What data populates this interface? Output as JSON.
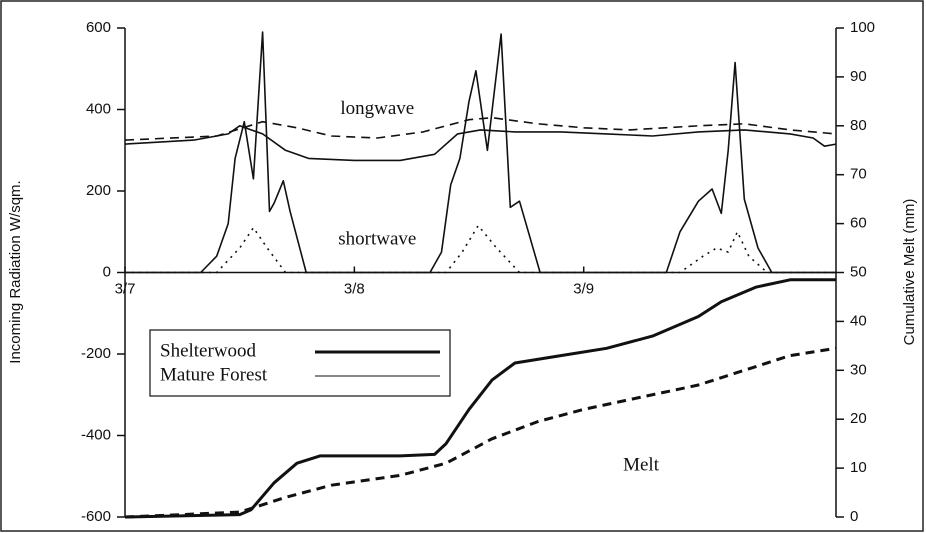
{
  "chart_data": {
    "type": "line",
    "ylabel": "Incoming Radiation W/sqm.",
    "y2label": "Cumulative Melt (mm)",
    "xlim": [
      0,
      3.1
    ],
    "xticks": [
      {
        "value": 0,
        "label": "3/7"
      },
      {
        "value": 1,
        "label": "3/8"
      },
      {
        "value": 2,
        "label": "3/9"
      }
    ],
    "ylim": [
      -600,
      600
    ],
    "yticks": [
      600,
      400,
      200,
      0,
      -200,
      -400,
      -600
    ],
    "y2lim": [
      0,
      100
    ],
    "y2ticks": [
      0,
      10,
      20,
      30,
      40,
      50,
      60,
      70,
      80,
      90,
      100
    ],
    "annotations": [
      "longwave",
      "shortwave",
      "Melt"
    ],
    "legend": [
      {
        "name": "Shelterwood",
        "width": 3
      },
      {
        "name": "Mature Forest",
        "width": 1
      }
    ],
    "series": [
      {
        "color": "#111",
        "width": 1.6,
        "dash": "solid",
        "axis": "y",
        "x": [
          0,
          0.3,
          0.45,
          0.5,
          0.55,
          0.6,
          0.7,
          0.8,
          1.0,
          1.2,
          1.35,
          1.45,
          1.55,
          1.7,
          1.9,
          2.1,
          2.3,
          2.5,
          2.7,
          2.9,
          3.0,
          3.05,
          3.1
        ],
        "values": [
          315,
          325,
          340,
          360,
          350,
          340,
          300,
          280,
          275,
          275,
          290,
          340,
          350,
          345,
          345,
          340,
          335,
          345,
          350,
          340,
          330,
          310,
          315
        ]
      },
      {
        "color": "#111",
        "width": 1.6,
        "dash": "dashed",
        "axis": "y",
        "x": [
          0,
          0.4,
          0.6,
          0.75,
          0.9,
          1.1,
          1.3,
          1.5,
          1.6,
          1.8,
          2.0,
          2.2,
          2.5,
          2.7,
          2.9,
          3.1
        ],
        "values": [
          325,
          335,
          370,
          355,
          335,
          330,
          345,
          375,
          380,
          365,
          355,
          350,
          360,
          365,
          350,
          340
        ]
      },
      {
        "color": "#111",
        "width": 1.6,
        "dash": "solid",
        "axis": "y",
        "x": [
          0,
          0.33,
          0.4,
          0.45,
          0.48,
          0.52,
          0.56,
          0.6,
          0.63,
          0.65,
          0.69,
          0.72,
          0.79,
          1.33,
          1.38,
          1.42,
          1.46,
          1.5,
          1.53,
          1.58,
          1.64,
          1.68,
          1.72,
          1.81,
          2.36,
          2.42,
          2.5,
          2.56,
          2.6,
          2.63,
          2.66,
          2.7,
          2.76,
          2.82,
          3.1
        ],
        "values": [
          0,
          0,
          40,
          120,
          280,
          370,
          230,
          590,
          150,
          170,
          225,
          150,
          0,
          0,
          50,
          215,
          280,
          420,
          495,
          300,
          585,
          160,
          175,
          0,
          0,
          100,
          175,
          205,
          145,
          300,
          515,
          180,
          60,
          0,
          0
        ]
      },
      {
        "color": "#111",
        "width": 1.6,
        "dash": "dotted",
        "axis": "y",
        "x": [
          0,
          0.4,
          0.5,
          0.56,
          0.62,
          0.7,
          1.4,
          1.47,
          1.54,
          1.62,
          1.72,
          2.42,
          2.52,
          2.58,
          2.63,
          2.67,
          2.72,
          2.8,
          3.1
        ],
        "values": [
          0,
          0,
          60,
          110,
          60,
          0,
          0,
          50,
          115,
          60,
          0,
          0,
          40,
          60,
          50,
          100,
          40,
          0,
          0
        ]
      },
      {
        "color": "#111",
        "width": 3,
        "dash": "solid",
        "axis": "y2",
        "x": [
          0,
          0.5,
          0.55,
          0.65,
          0.75,
          0.85,
          1.0,
          1.2,
          1.35,
          1.4,
          1.5,
          1.6,
          1.7,
          1.9,
          2.1,
          2.3,
          2.5,
          2.6,
          2.75,
          2.9,
          3.1
        ],
        "values": [
          0,
          0.5,
          1.5,
          7,
          11,
          12.5,
          12.5,
          12.5,
          12.8,
          15,
          22,
          28,
          31.5,
          33,
          34.5,
          37,
          41,
          44,
          47,
          48.5,
          48.5
        ]
      },
      {
        "color": "#111",
        "width": 3,
        "dash": "dashed",
        "axis": "y2",
        "x": [
          0,
          0.5,
          0.7,
          0.9,
          1.2,
          1.4,
          1.6,
          1.8,
          2.0,
          2.2,
          2.5,
          2.7,
          2.9,
          3.1
        ],
        "values": [
          0,
          1,
          4,
          6.5,
          8.5,
          11,
          16,
          19.5,
          22,
          24,
          27,
          30,
          33,
          34.5
        ]
      }
    ]
  }
}
